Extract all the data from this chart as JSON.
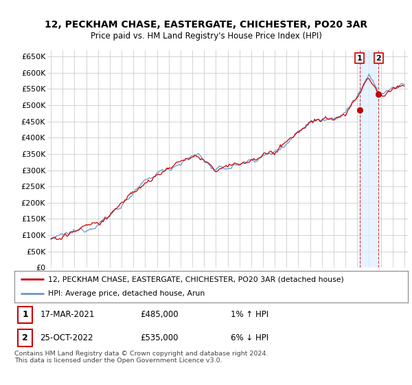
{
  "title": "12, PECKHAM CHASE, EASTERGATE, CHICHESTER, PO20 3AR",
  "subtitle": "Price paid vs. HM Land Registry's House Price Index (HPI)",
  "ylim": [
    0,
    670000
  ],
  "yticks": [
    0,
    50000,
    100000,
    150000,
    200000,
    250000,
    300000,
    350000,
    400000,
    450000,
    500000,
    550000,
    600000,
    650000
  ],
  "ytick_labels": [
    "£0",
    "£50K",
    "£100K",
    "£150K",
    "£200K",
    "£250K",
    "£300K",
    "£350K",
    "£400K",
    "£450K",
    "£500K",
    "£550K",
    "£600K",
    "£650K"
  ],
  "hpi_color": "#6699cc",
  "sale_color": "#cc0000",
  "shade_color": "#ddeeff",
  "sale1_date": 2021.21,
  "sale1_price": 485000,
  "sale2_date": 2022.82,
  "sale2_price": 535000,
  "xlim_left": 1994.7,
  "xlim_right": 2025.3,
  "legend_sale_label": "12, PECKHAM CHASE, EASTERGATE, CHICHESTER, PO20 3AR (detached house)",
  "legend_hpi_label": "HPI: Average price, detached house, Arun",
  "annotation1_date": "17-MAR-2021",
  "annotation1_price": "£485,000",
  "annotation1_change": "1% ↑ HPI",
  "annotation2_date": "25-OCT-2022",
  "annotation2_price": "£535,000",
  "annotation2_change": "6% ↓ HPI",
  "footer": "Contains HM Land Registry data © Crown copyright and database right 2024.\nThis data is licensed under the Open Government Licence v3.0.",
  "background_color": "#ffffff",
  "grid_color": "#cccccc",
  "plot_bg": "#ffffff"
}
